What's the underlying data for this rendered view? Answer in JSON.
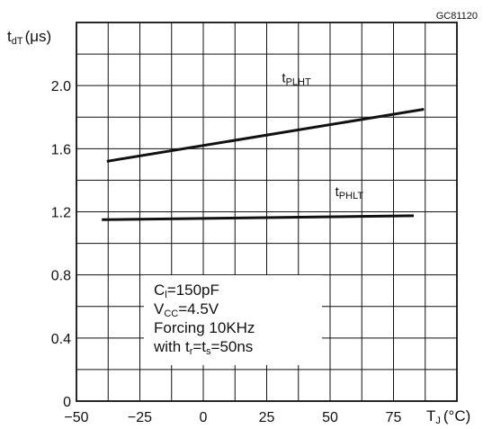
{
  "figure_code": "GC81120",
  "chart_data": {
    "type": "line",
    "ylabel": {
      "main": "t",
      "sub": "dT",
      "unit": "(μs)"
    },
    "xlabel": {
      "main": "T",
      "sub": "J",
      "unit": "(°C)"
    },
    "xlim": [
      -50,
      100
    ],
    "ylim": [
      0,
      2.4
    ],
    "x_ticks": [
      -50,
      -25,
      0,
      25,
      50,
      75
    ],
    "x_tick_labels": [
      "−50",
      "−25",
      "0",
      "25",
      "50",
      "75"
    ],
    "y_ticks": [
      0,
      0.4,
      0.8,
      1.2,
      1.6,
      2.0
    ],
    "y_tick_labels": [
      "0",
      "0.4",
      "0.8",
      "1.2",
      "1.6",
      "2.0"
    ],
    "grid": true,
    "series": [
      {
        "name": "t_PLHT",
        "label_main": "t",
        "label_sub": "PLHT",
        "x": [
          -38,
          87
        ],
        "y": [
          1.52,
          1.85
        ],
        "label_at": [
          31,
          2.02
        ]
      },
      {
        "name": "t_PHLT",
        "label_main": "t",
        "label_sub": "PHLT",
        "x": [
          -40,
          83
        ],
        "y": [
          1.15,
          1.175
        ],
        "label_at": [
          52,
          1.3
        ]
      }
    ],
    "conditions": [
      {
        "main": "C",
        "sub": "l",
        "rest": "=150pF"
      },
      {
        "main": "V",
        "sub": "CC",
        "rest": "=4.5V"
      },
      {
        "main": "Forcing  10KHz",
        "sub": "",
        "rest": ""
      },
      {
        "main": "with  t",
        "sub": "r",
        "rest": "=t",
        "sub2": "s",
        "rest2": "=50ns"
      }
    ]
  }
}
